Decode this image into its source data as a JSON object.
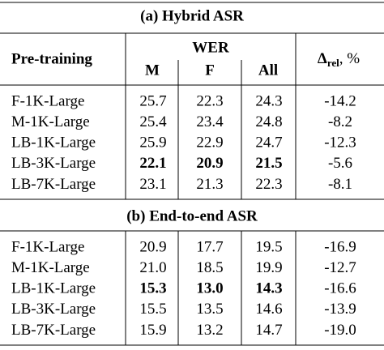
{
  "header": {
    "pretraining": "Pre-training",
    "wer": "WER",
    "columns": [
      "M",
      "F",
      "All"
    ],
    "delta": {
      "symbol": "Δ",
      "subscript": "rel",
      "suffix": ", %"
    }
  },
  "sections": [
    {
      "title": "(a) Hybrid ASR",
      "rows": [
        {
          "cells": [
            "F-1K-Large",
            "25.7",
            "22.3",
            "24.3",
            "-14.2"
          ],
          "bold": []
        },
        {
          "cells": [
            "M-1K-Large",
            "25.4",
            "23.4",
            "24.8",
            "-8.2"
          ],
          "bold": []
        },
        {
          "cells": [
            "LB-1K-Large",
            "25.9",
            "22.9",
            "24.7",
            "-12.3"
          ],
          "bold": []
        },
        {
          "cells": [
            "LB-3K-Large",
            "22.1",
            "20.9",
            "21.5",
            "-5.6"
          ],
          "bold": [
            1,
            2,
            3
          ]
        },
        {
          "cells": [
            "LB-7K-Large",
            "23.1",
            "21.3",
            "22.3",
            "-8.1"
          ],
          "bold": []
        }
      ]
    },
    {
      "title": "(b) End-to-end ASR",
      "rows": [
        {
          "cells": [
            "F-1K-Large",
            "20.9",
            "17.7",
            "19.5",
            "-16.9"
          ],
          "bold": []
        },
        {
          "cells": [
            "M-1K-Large",
            "21.0",
            "18.5",
            "19.9",
            "-12.7"
          ],
          "bold": []
        },
        {
          "cells": [
            "LB-1K-Large",
            "15.3",
            "13.0",
            "14.3",
            "-16.6"
          ],
          "bold": [
            1,
            2,
            3
          ]
        },
        {
          "cells": [
            "LB-3K-Large",
            "15.5",
            "13.5",
            "14.6",
            "-13.9"
          ],
          "bold": []
        },
        {
          "cells": [
            "LB-7K-Large",
            "15.9",
            "13.2",
            "14.7",
            "-19.0"
          ],
          "bold": []
        }
      ]
    }
  ]
}
